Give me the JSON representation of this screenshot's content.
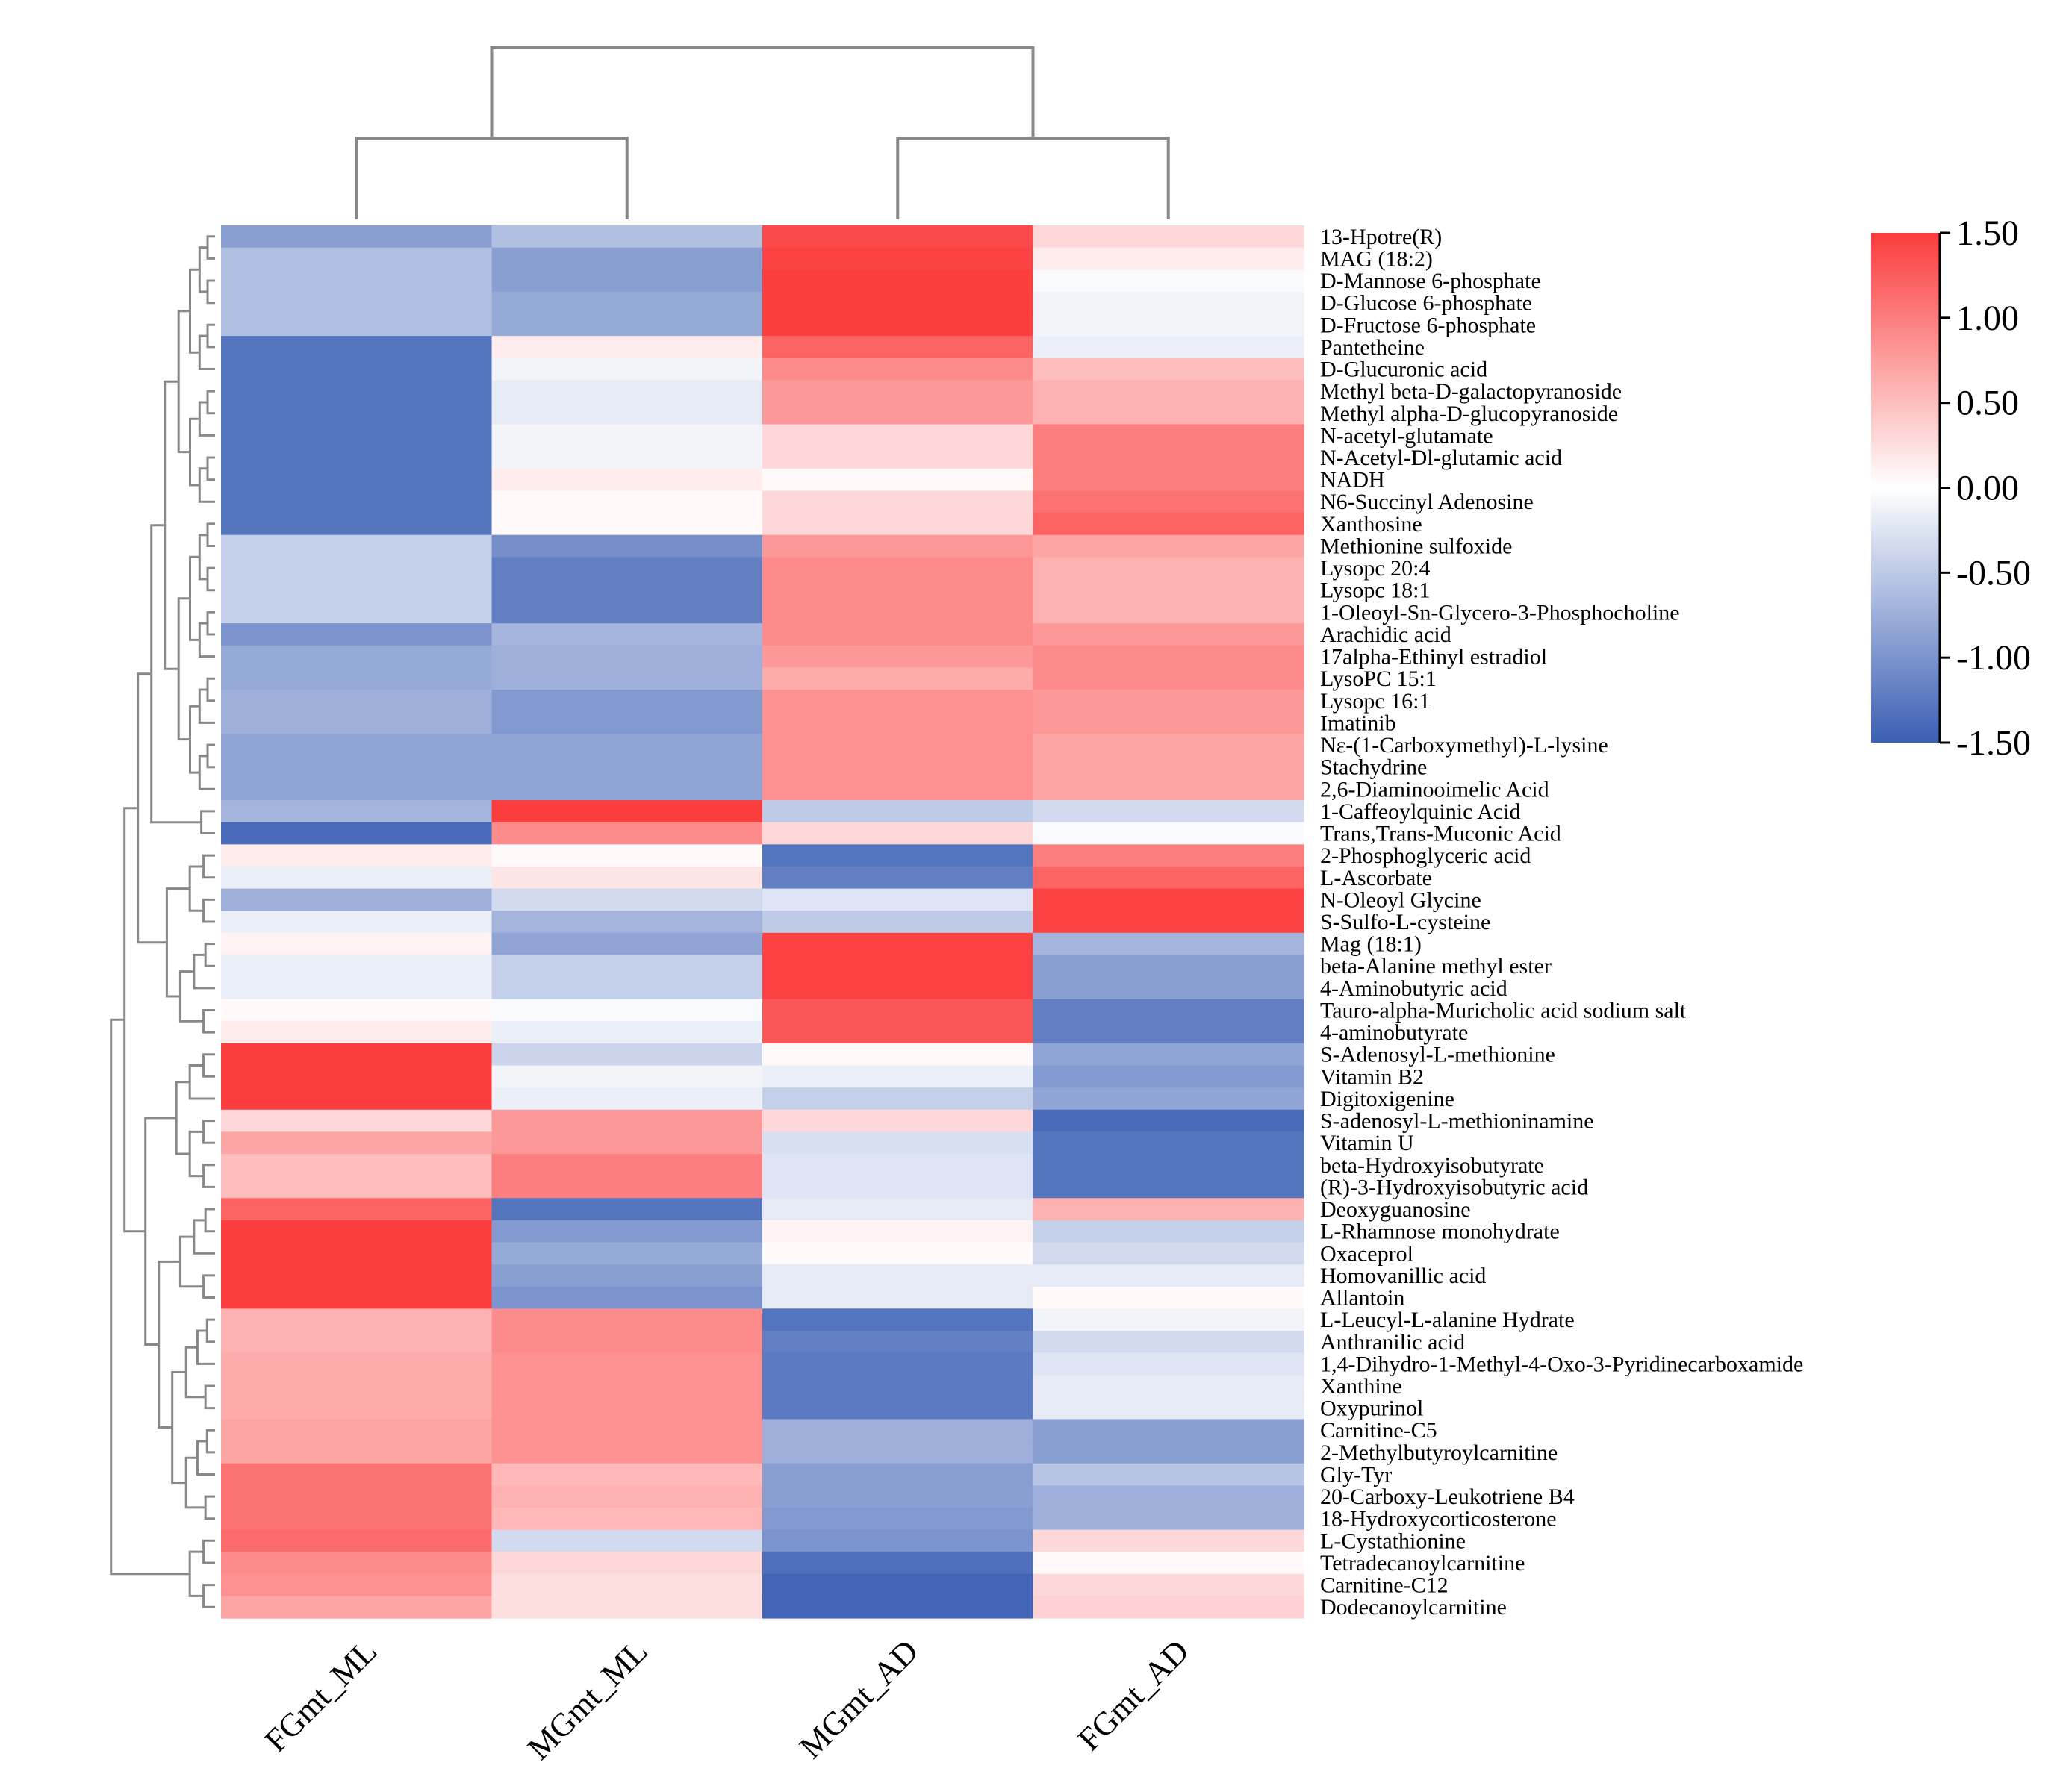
{
  "chart_data": {
    "type": "heatmap",
    "title": "",
    "columns": [
      "FGmt_ML",
      "MGmt_ML",
      "MGmt_AD",
      "FGmt_AD"
    ],
    "rows": [
      "13-Hpotre(R)",
      "MAG (18:2)",
      "D-Mannose 6-phosphate",
      "D-Glucose 6-phosphate",
      "D-Fructose 6-phosphate",
      "Pantetheine",
      "D-Glucuronic acid",
      "Methyl beta-D-galactopyranoside",
      "Methyl alpha-D-glucopyranoside",
      "N-acetyl-glutamate",
      "N-Acetyl-Dl-glutamic acid",
      "NADH",
      "N6-Succinyl Adenosine",
      "Xanthosine",
      "Methionine sulfoxide",
      "Lysopc 20:4",
      "Lysopc 18:1",
      "1-Oleoyl-Sn-Glycero-3-Phosphocholine",
      "Arachidic acid",
      "17alpha-Ethinyl estradiol",
      "LysoPC 15:1",
      "Lysopc 16:1",
      "Imatinib",
      "Nε-(1-Carboxymethyl)-L-lysine",
      "Stachydrine",
      "2,6-Diaminooimelic Acid",
      "1-Caffeoylquinic Acid",
      "Trans,Trans-Muconic Acid",
      "2-Phosphoglyceric acid",
      "L-Ascorbate",
      "N-Oleoyl Glycine",
      "S-Sulfo-L-cysteine",
      "Mag (18:1)",
      "beta-Alanine methyl ester",
      "4-Aminobutyric acid",
      "Tauro-alpha-Muricholic acid sodium salt",
      "4-aminobutyrate",
      "S-Adenosyl-L-methionine",
      "Vitamin B2",
      "Digitoxigenine",
      "S-adenosyl-L-methioninamine",
      "Vitamin U",
      "beta-Hydroxyisobutyrate",
      "(R)-3-Hydroxyisobutyric acid",
      "Deoxyguanosine",
      "L-Rhamnose monohydrate",
      "Oxaceprol",
      "Homovanillic acid",
      "Allantoin",
      "L-Leucyl-L-alanine Hydrate",
      "Anthranilic acid",
      "1,4-Dihydro-1-Methyl-4-Oxo-3-Pyridinecarboxamide",
      "Xanthine",
      "Oxypurinol",
      "Carnitine-C5",
      "2-Methylbutyroylcarnitine",
      "Gly-Tyr",
      "20-Carboxy-Leukotriene B4",
      "18-Hydroxycorticosterone",
      "L-Cystathionine",
      "Tetradecanoylcarnitine",
      "Carnitine-C12",
      "Dodecanoylcarnitine"
    ],
    "values": [
      [
        -0.9,
        -0.6,
        1.4,
        0.3
      ],
      [
        -0.6,
        -0.9,
        1.45,
        0.15
      ],
      [
        -0.6,
        -0.9,
        1.5,
        -0.05
      ],
      [
        -0.6,
        -0.8,
        1.5,
        -0.1
      ],
      [
        -0.6,
        -0.8,
        1.5,
        -0.1
      ],
      [
        -1.3,
        0.15,
        1.2,
        -0.15
      ],
      [
        -1.3,
        -0.1,
        0.9,
        0.5
      ],
      [
        -1.3,
        -0.2,
        0.8,
        0.6
      ],
      [
        -1.3,
        -0.2,
        0.8,
        0.6
      ],
      [
        -1.3,
        -0.1,
        0.3,
        1.0
      ],
      [
        -1.3,
        -0.1,
        0.3,
        1.0
      ],
      [
        -1.3,
        0.15,
        0.05,
        1.0
      ],
      [
        -1.3,
        0.05,
        0.3,
        1.1
      ],
      [
        -1.3,
        0.05,
        0.3,
        1.2
      ],
      [
        -0.45,
        -1.05,
        0.8,
        0.7
      ],
      [
        -0.45,
        -1.2,
        0.9,
        0.6
      ],
      [
        -0.45,
        -1.2,
        0.9,
        0.6
      ],
      [
        -0.45,
        -1.2,
        0.9,
        0.6
      ],
      [
        -1.0,
        -0.7,
        0.9,
        0.8
      ],
      [
        -0.8,
        -0.75,
        0.8,
        0.9
      ],
      [
        -0.8,
        -0.75,
        0.65,
        0.9
      ],
      [
        -0.75,
        -0.95,
        0.85,
        0.8
      ],
      [
        -0.75,
        -0.95,
        0.85,
        0.8
      ],
      [
        -0.85,
        -0.85,
        0.85,
        0.7
      ],
      [
        -0.85,
        -0.85,
        0.85,
        0.7
      ],
      [
        -0.85,
        -0.85,
        0.85,
        0.7
      ],
      [
        -0.7,
        1.5,
        -0.5,
        -0.35
      ],
      [
        -1.4,
        0.9,
        0.3,
        -0.05
      ],
      [
        0.15,
        0.05,
        -1.3,
        1.0
      ],
      [
        -0.15,
        0.2,
        -1.2,
        1.2
      ],
      [
        -0.75,
        -0.35,
        -0.25,
        1.45
      ],
      [
        -0.15,
        -0.7,
        -0.5,
        1.45
      ],
      [
        0.1,
        -0.85,
        1.45,
        -0.7
      ],
      [
        -0.15,
        -0.45,
        1.45,
        -0.9
      ],
      [
        -0.15,
        -0.45,
        1.45,
        -0.9
      ],
      [
        0.05,
        -0.05,
        1.3,
        -1.2
      ],
      [
        0.15,
        -0.15,
        1.3,
        -1.2
      ],
      [
        1.5,
        -0.4,
        0.05,
        -0.85
      ],
      [
        1.5,
        -0.1,
        -0.15,
        -0.95
      ],
      [
        1.5,
        -0.15,
        -0.45,
        -0.85
      ],
      [
        0.3,
        0.8,
        0.3,
        -1.4
      ],
      [
        0.7,
        0.8,
        -0.3,
        -1.3
      ],
      [
        0.5,
        1.0,
        -0.25,
        -1.3
      ],
      [
        0.5,
        1.0,
        -0.25,
        -1.3
      ],
      [
        1.2,
        -1.3,
        -0.2,
        0.6
      ],
      [
        1.5,
        -0.95,
        0.1,
        -0.45
      ],
      [
        1.5,
        -0.8,
        0.05,
        -0.35
      ],
      [
        1.5,
        -0.9,
        -0.2,
        -0.2
      ],
      [
        1.5,
        -1.0,
        -0.2,
        0.05
      ],
      [
        0.6,
        0.9,
        -1.3,
        -0.1
      ],
      [
        0.6,
        0.9,
        -1.2,
        -0.35
      ],
      [
        0.65,
        0.85,
        -1.25,
        -0.25
      ],
      [
        0.65,
        0.85,
        -1.25,
        -0.2
      ],
      [
        0.65,
        0.85,
        -1.25,
        -0.2
      ],
      [
        0.7,
        0.85,
        -0.75,
        -0.9
      ],
      [
        0.7,
        0.85,
        -0.75,
        -0.9
      ],
      [
        1.1,
        0.55,
        -0.9,
        -0.55
      ],
      [
        1.1,
        0.6,
        -0.9,
        -0.75
      ],
      [
        1.1,
        0.55,
        -0.95,
        -0.75
      ],
      [
        1.15,
        -0.35,
        -1.0,
        0.3
      ],
      [
        0.9,
        0.3,
        -1.35,
        0.05
      ],
      [
        0.85,
        0.25,
        -1.45,
        0.3
      ],
      [
        0.7,
        0.25,
        -1.45,
        0.35
      ]
    ],
    "color_scale": {
      "min": -1.5,
      "max": 1.5,
      "low": "#3b5fb4",
      "mid": "#ffffff",
      "high": "#fb3d3d",
      "ticks": [
        "1.50",
        "1.00",
        "0.50",
        "0.00",
        "-0.50",
        "-1.00",
        "-1.50"
      ]
    },
    "col_dendrogram": [
      [
        0,
        1
      ],
      [
        2,
        3
      ],
      [
        [
          0,
          1
        ],
        [
          2,
          3
        ]
      ]
    ],
    "row_dendrogram": "hierarchical clustering tree drawn to the left of rows",
    "grid": false,
    "legend_position": "right"
  }
}
